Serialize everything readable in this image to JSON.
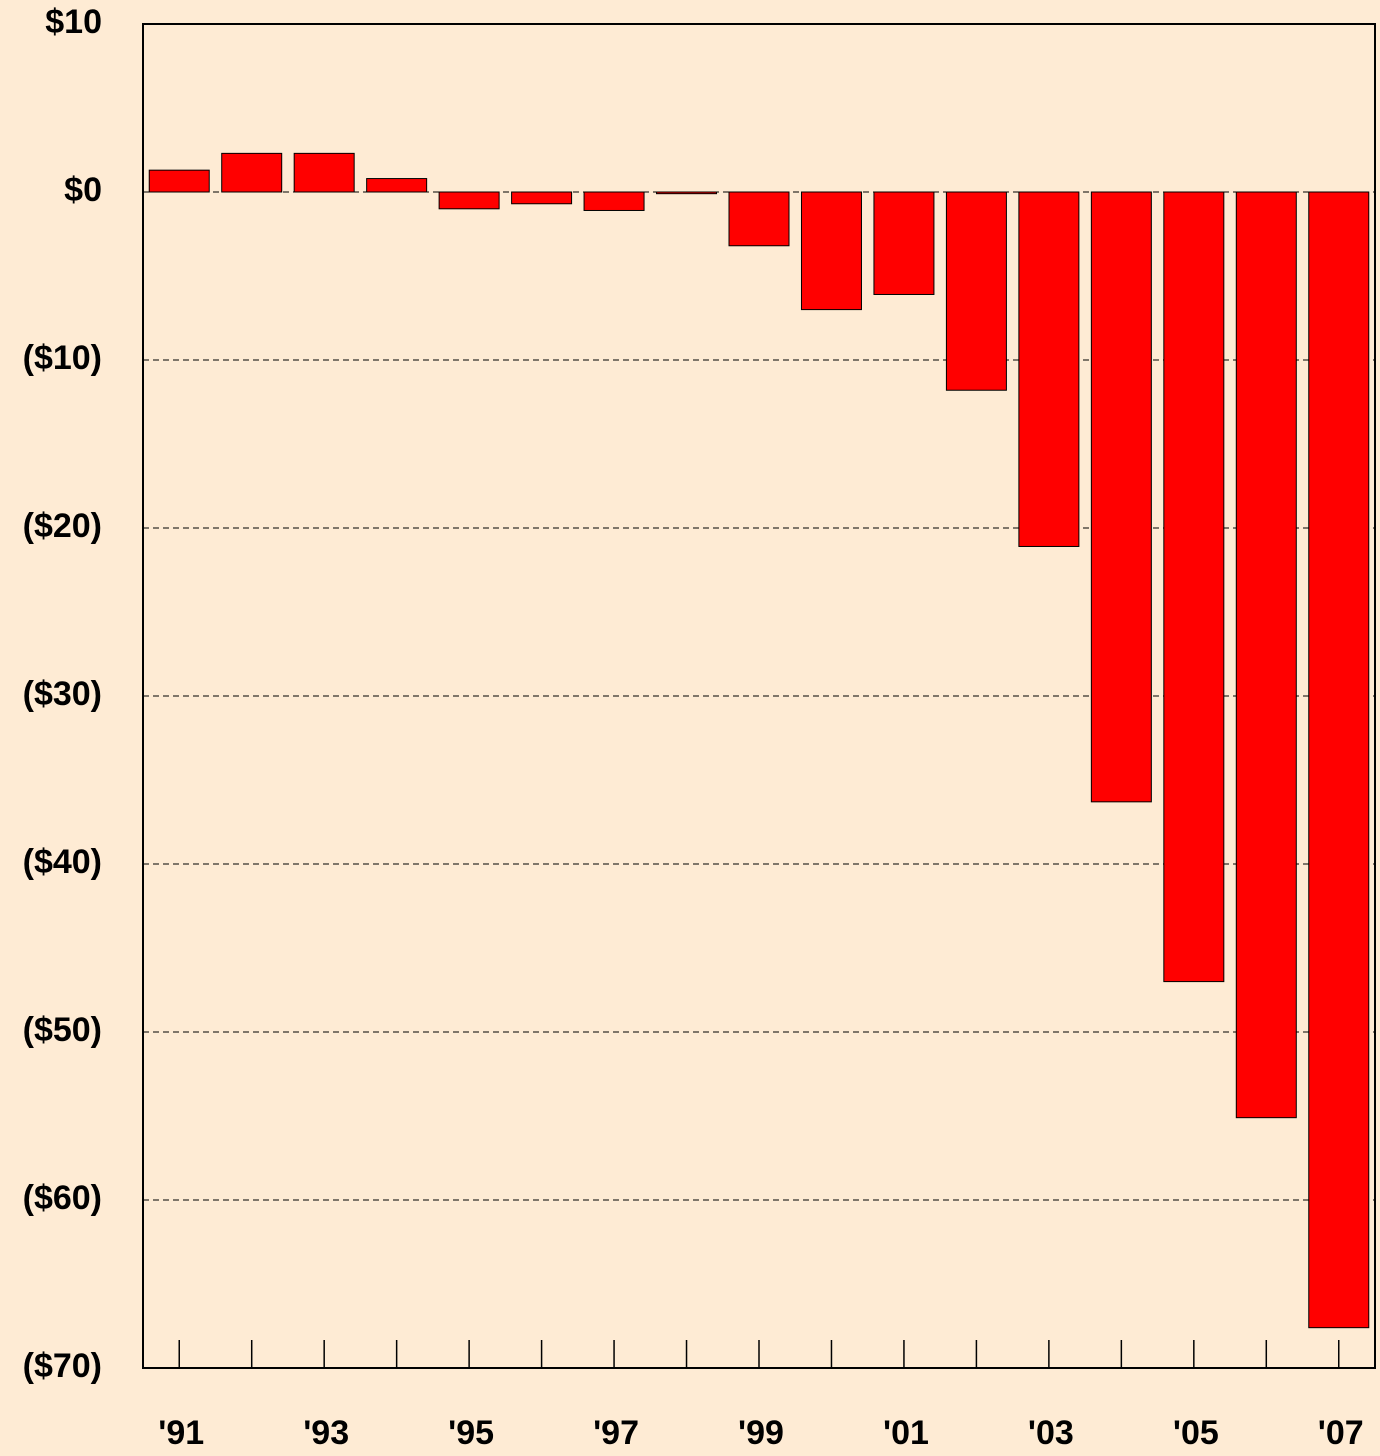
{
  "chart_data": {
    "type": "bar",
    "categories": [
      "'91",
      null,
      "'93",
      null,
      "'95",
      null,
      "'97",
      null,
      "'99",
      null,
      "'01",
      null,
      "'03",
      null,
      "'05",
      null,
      "'07"
    ],
    "values": [
      1.3,
      2.3,
      2.3,
      0.8,
      -1.0,
      -0.7,
      -1.1,
      -0.1,
      -3.2,
      -7.0,
      -6.1,
      -11.8,
      -21.1,
      -36.3,
      -47.0,
      -55.1,
      -67.6
    ],
    "color": "#ff0000",
    "ylim": [
      -70,
      10
    ],
    "yticks": [
      {
        "value": 10,
        "label": "$10"
      },
      {
        "value": 0,
        "label": "$0"
      },
      {
        "value": -10,
        "label": "($10)"
      },
      {
        "value": -20,
        "label": "($20)"
      },
      {
        "value": -30,
        "label": "($30)"
      },
      {
        "value": -40,
        "label": "($40)"
      },
      {
        "value": -50,
        "label": "($50)"
      },
      {
        "value": -60,
        "label": "($60)"
      },
      {
        "value": -70,
        "label": "($70)"
      }
    ],
    "grid": true
  }
}
